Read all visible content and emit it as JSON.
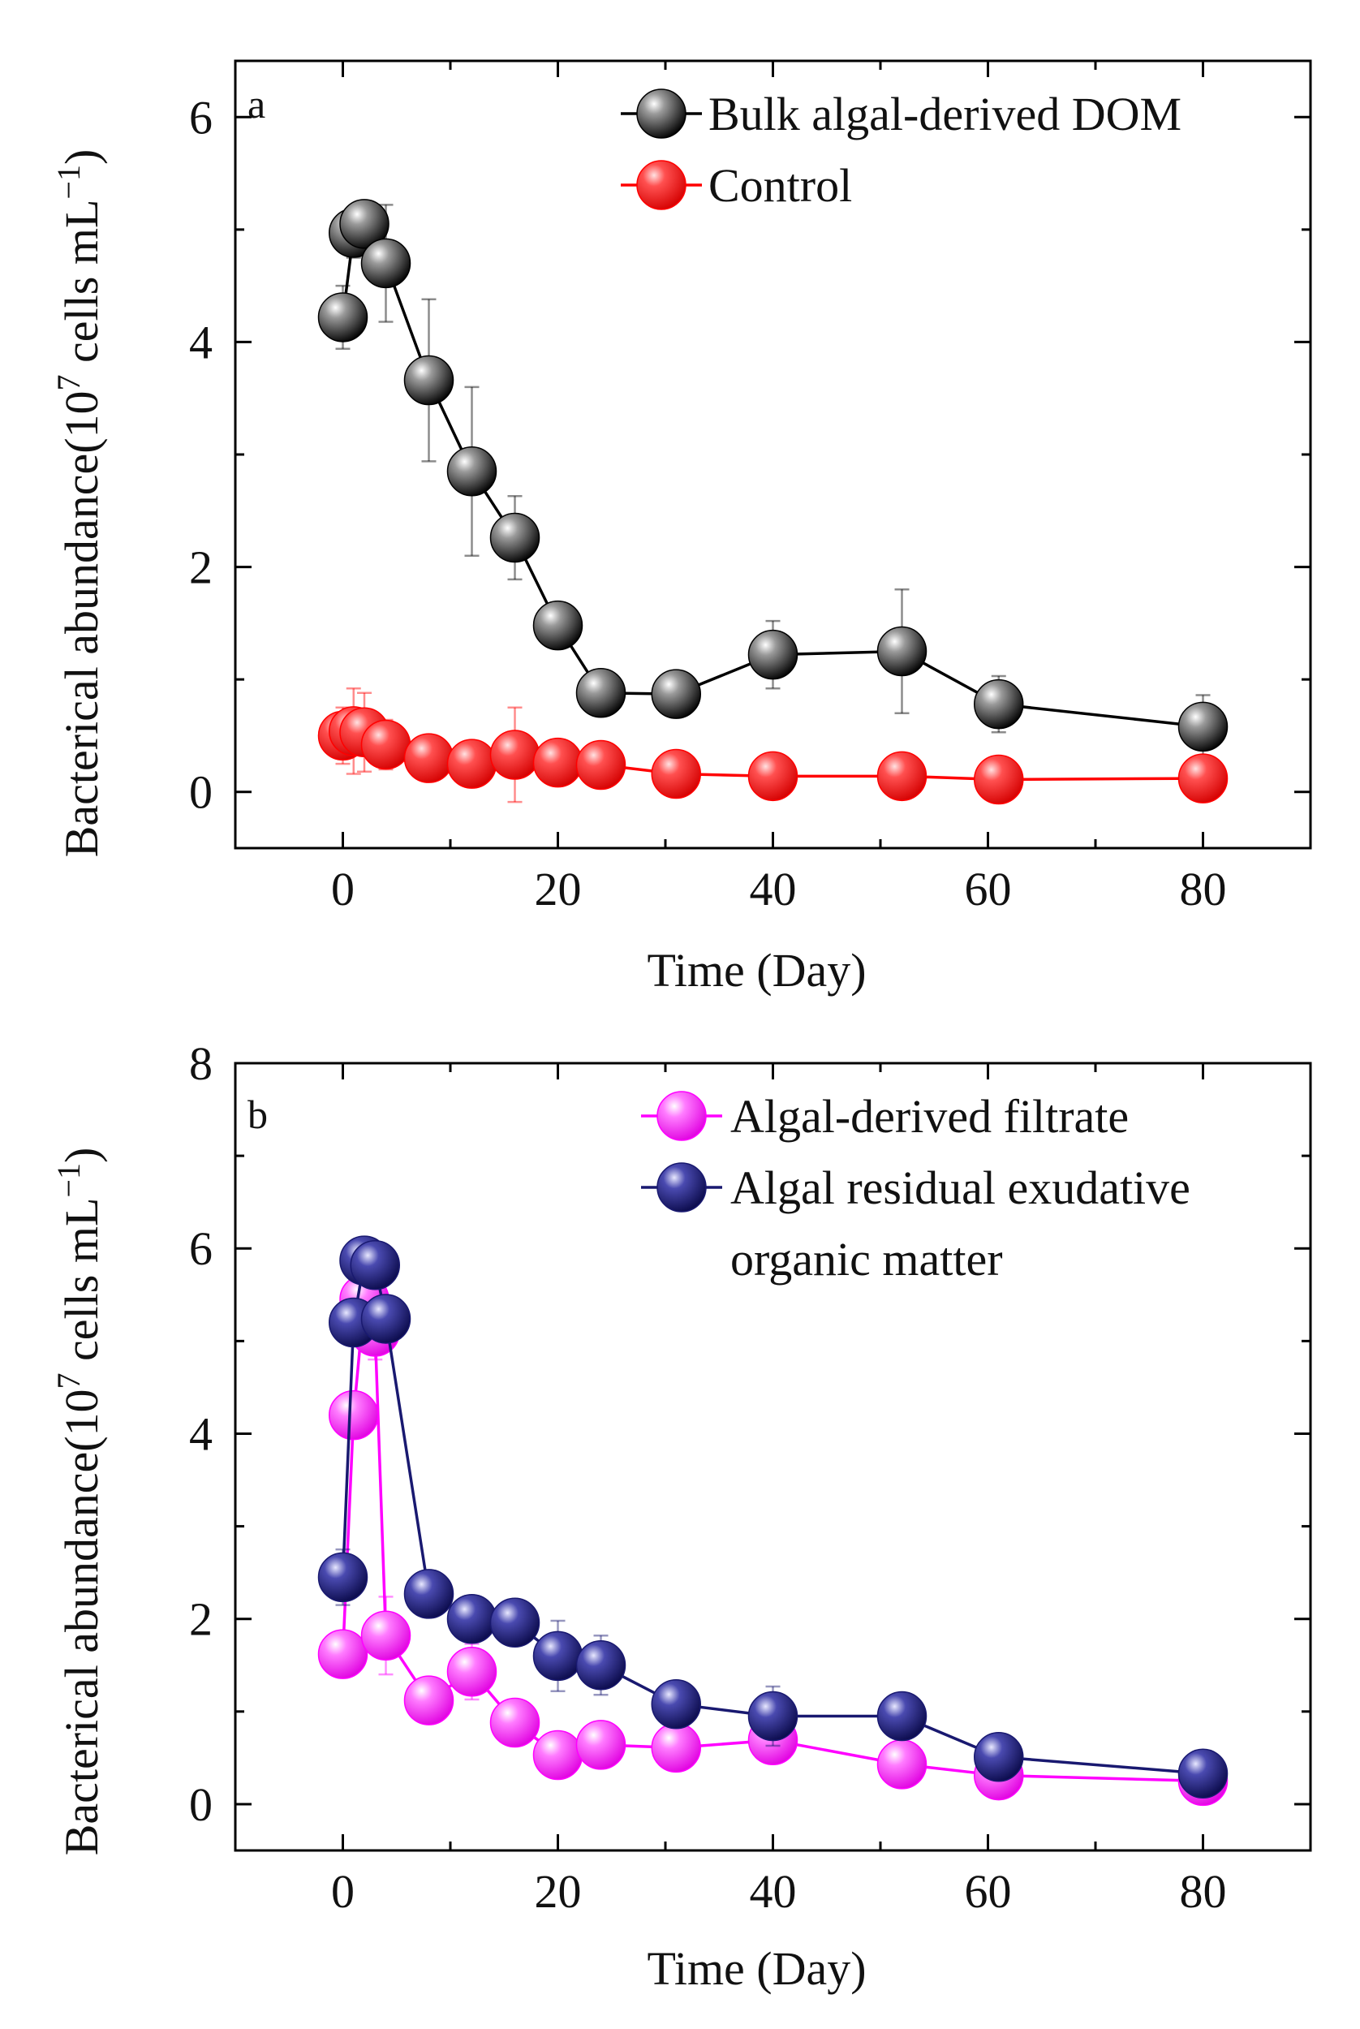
{
  "chart_data": [
    {
      "type": "line",
      "panel_label": "a",
      "xlabel": "Time (Day)",
      "ylabel": {
        "prefix": "Bacterical abundance(10",
        "exp1": "7",
        "middle": " cells mL",
        "exp2": "−1",
        "suffix": ")"
      },
      "xlim": [
        -10,
        90
      ],
      "ylim": [
        -0.5,
        6.5
      ],
      "xticks": [
        0,
        20,
        40,
        60,
        80
      ],
      "xtick_labels": [
        "0",
        "20",
        "40",
        "60",
        "80"
      ],
      "yticks": [
        0,
        2,
        4,
        6
      ],
      "ytick_labels": [
        "0",
        "2",
        "4",
        "6"
      ],
      "legend_position": "top-right",
      "series": [
        {
          "name": "Bulk algal-derived DOM",
          "color": "#000000",
          "x": [
            0,
            1,
            2,
            4,
            8,
            12,
            16,
            20,
            24,
            31,
            40,
            52,
            61,
            80
          ],
          "y": [
            4.22,
            4.97,
            5.05,
            4.7,
            3.66,
            2.85,
            2.26,
            1.48,
            0.88,
            0.87,
            1.22,
            1.25,
            0.78,
            0.58
          ],
          "err": [
            0.28,
            0.22,
            0.15,
            0.52,
            0.72,
            0.75,
            0.37,
            0.0,
            0.0,
            0.0,
            0.3,
            0.55,
            0.25,
            0.28
          ]
        },
        {
          "name": "Control",
          "color": "#ff0000",
          "x": [
            0,
            1,
            2,
            4,
            8,
            12,
            16,
            20,
            24,
            31,
            40,
            52,
            61,
            80
          ],
          "y": [
            0.5,
            0.54,
            0.53,
            0.42,
            0.3,
            0.25,
            0.33,
            0.26,
            0.24,
            0.16,
            0.14,
            0.14,
            0.11,
            0.12
          ],
          "err": [
            0.25,
            0.38,
            0.35,
            0.22,
            0.2,
            0.1,
            0.42,
            0.1,
            0.08,
            0.0,
            0.0,
            0.0,
            0.0,
            0.0
          ]
        }
      ]
    },
    {
      "type": "line",
      "panel_label": "b",
      "xlabel": "Time (Day)",
      "ylabel": {
        "prefix": "Bacterical abundance(10",
        "exp1": "7",
        "middle": " cells mL",
        "exp2": "−1",
        "suffix": ")"
      },
      "xlim": [
        -10,
        90
      ],
      "ylim": [
        -0.5,
        8
      ],
      "xticks": [
        0,
        20,
        40,
        60,
        80
      ],
      "xtick_labels": [
        "0",
        "20",
        "40",
        "60",
        "80"
      ],
      "yticks": [
        0,
        2,
        4,
        6,
        8
      ],
      "ytick_labels": [
        "0",
        "2",
        "4",
        "6",
        "8"
      ],
      "legend_position": "top-right",
      "series": [
        {
          "name": "Algal-derived filtrate",
          "color": "#ff00ff",
          "x": [
            0,
            1,
            2,
            3,
            4,
            8,
            12,
            16,
            20,
            24,
            31,
            40,
            52,
            61,
            80
          ],
          "y": [
            1.62,
            4.2,
            5.45,
            5.1,
            1.82,
            1.12,
            1.43,
            0.88,
            0.53,
            0.64,
            0.61,
            0.69,
            0.43,
            0.31,
            0.25
          ],
          "err": [
            0.2,
            0.15,
            0.3,
            0.3,
            0.42,
            0.12,
            0.3,
            0.22,
            0.1,
            0.1,
            0.1,
            0.22,
            0.1,
            0.05,
            0.05
          ]
        },
        {
          "name": "Algal residual exudative organic matter",
          "legend_lines": [
            "Algal residual exudative",
            "organic matter"
          ],
          "color": "#191970",
          "x": [
            0,
            1,
            2,
            3,
            4,
            8,
            12,
            16,
            20,
            24,
            31,
            40,
            52,
            61,
            80
          ],
          "y": [
            2.45,
            5.2,
            5.87,
            5.82,
            5.24,
            2.27,
            2.0,
            1.96,
            1.6,
            1.5,
            1.08,
            0.95,
            0.95,
            0.51,
            0.33
          ],
          "err": [
            0.3,
            0.2,
            0.2,
            0.22,
            0.2,
            0.25,
            0.1,
            0.24,
            0.38,
            0.32,
            0.1,
            0.32,
            0.1,
            0.08,
            0.05
          ]
        }
      ]
    }
  ]
}
